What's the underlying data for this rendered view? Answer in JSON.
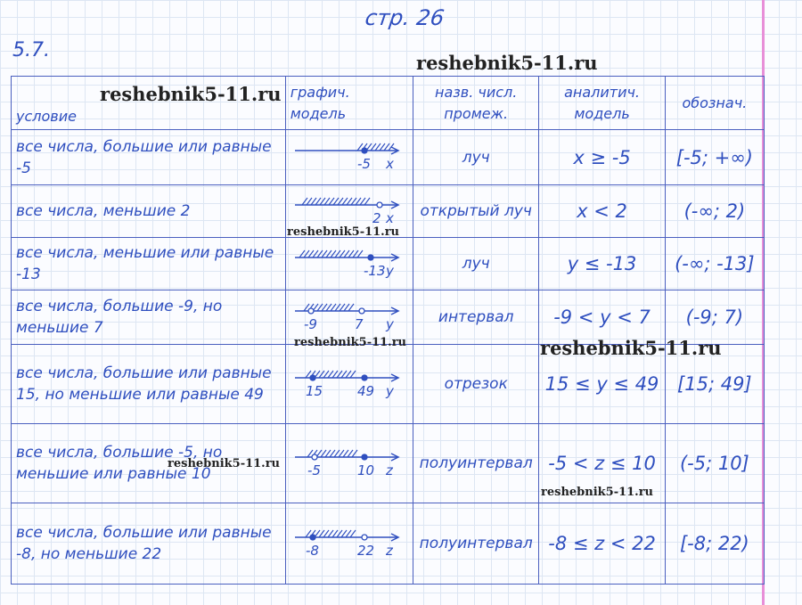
{
  "page_label": "стр. 26",
  "exercise": "5.7.",
  "headers": [
    "условие",
    "графич. модель",
    "назв. числ. промеж.",
    "аналитич. модель",
    "обознач."
  ],
  "rows": [
    {
      "condition": "все числа, большие или равные -5",
      "graph": {
        "labels": [
          "-5"
        ],
        "var": "x"
      },
      "name": "луч",
      "analytic": "x ≥ -5",
      "notation": "[-5; +∞)"
    },
    {
      "condition": "все числа, меньшие 2",
      "graph": {
        "labels": [
          "2"
        ],
        "var": "x"
      },
      "name": "открытый луч",
      "analytic": "x < 2",
      "notation": "(-∞; 2)"
    },
    {
      "condition": "все числа, меньшие или равные -13",
      "graph": {
        "labels": [
          "-13"
        ],
        "var": "y"
      },
      "name": "луч",
      "analytic": "y ≤ -13",
      "notation": "(-∞; -13]"
    },
    {
      "condition": "все числа, большие -9, но меньшие 7",
      "graph": {
        "labels": [
          "-9",
          "7"
        ],
        "var": "y"
      },
      "name": "интервал",
      "analytic": "-9 < y < 7",
      "notation": "(-9; 7)"
    },
    {
      "condition": "все числа, большие или равные 15, но меньшие или равные 49",
      "graph": {
        "labels": [
          "15",
          "49"
        ],
        "var": "y"
      },
      "name": "отрезок",
      "analytic": "15 ≤ y ≤ 49",
      "notation": "[15; 49]"
    },
    {
      "condition": "все числа, большие -5, но меньшие или равные 10",
      "graph": {
        "labels": [
          "-5",
          "10"
        ],
        "var": "z"
      },
      "name": "полуинтервал",
      "analytic": "-5 < z ≤ 10",
      "notation": "(-5; 10]"
    },
    {
      "condition": "все числа, большие или равные -8, но меньшие 22",
      "graph": {
        "labels": [
          "-8",
          "22"
        ],
        "var": "z"
      },
      "name": "полуинтервал",
      "analytic": "-8 ≤ z < 22",
      "notation": "[-8; 22)"
    }
  ],
  "watermark": "reshebnik5-11.ru",
  "colors": {
    "ink": "#2f4fbf",
    "margin_line": "#e88fd8",
    "grid": "#dde6f3"
  }
}
